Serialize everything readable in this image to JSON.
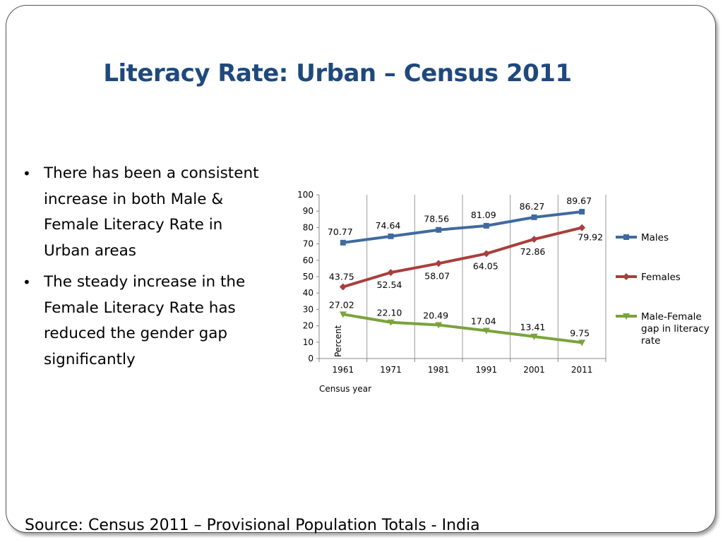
{
  "slide": {
    "title": "Literacy Rate: Urban – Census 2011",
    "bullets": [
      "There has been a consistent increase in both Male & Female Literacy Rate in Urban areas",
      "The steady increase in the Female Literacy Rate has reduced the gender gap significantly"
    ],
    "source": "Source: Census 2011 – Provisional Population Totals - India"
  },
  "chart_data": {
    "type": "line",
    "title": "",
    "xlabel": "Census year",
    "ylabel": "Percent",
    "categories": [
      "1961",
      "1971",
      "1981",
      "1991",
      "2001",
      "2011"
    ],
    "ylim": [
      0,
      100
    ],
    "yticks": [
      "0",
      "10",
      "20",
      "30",
      "40",
      "50",
      "60",
      "70",
      "80",
      "90",
      "100"
    ],
    "legend_position": "right",
    "series": [
      {
        "name": "Males",
        "color": "#3f6aa0",
        "marker": "square",
        "values": [
          70.77,
          74.64,
          78.56,
          81.09,
          86.27,
          89.67
        ],
        "labels": [
          "70.77",
          "74.64",
          "78.56",
          "81.09",
          "86.27",
          "89.67"
        ]
      },
      {
        "name": "Females",
        "color": "#a83f3c",
        "marker": "diamond",
        "values": [
          43.75,
          52.54,
          58.07,
          64.05,
          72.86,
          79.92
        ],
        "labels": [
          "43.75",
          "52.54",
          "58.07",
          "64.05",
          "72.86",
          "79.92"
        ]
      },
      {
        "name": "Male-Female gap in literacy rate",
        "legend_lines": [
          "Male-Female",
          "gap in literacy",
          "rate"
        ],
        "color": "#7aa33b",
        "marker": "triangle",
        "values": [
          27.02,
          22.1,
          20.49,
          17.04,
          13.41,
          9.75
        ],
        "labels": [
          "27.02",
          "22.10",
          "20.49",
          "17.04",
          "13.41",
          "9.75"
        ]
      }
    ]
  }
}
